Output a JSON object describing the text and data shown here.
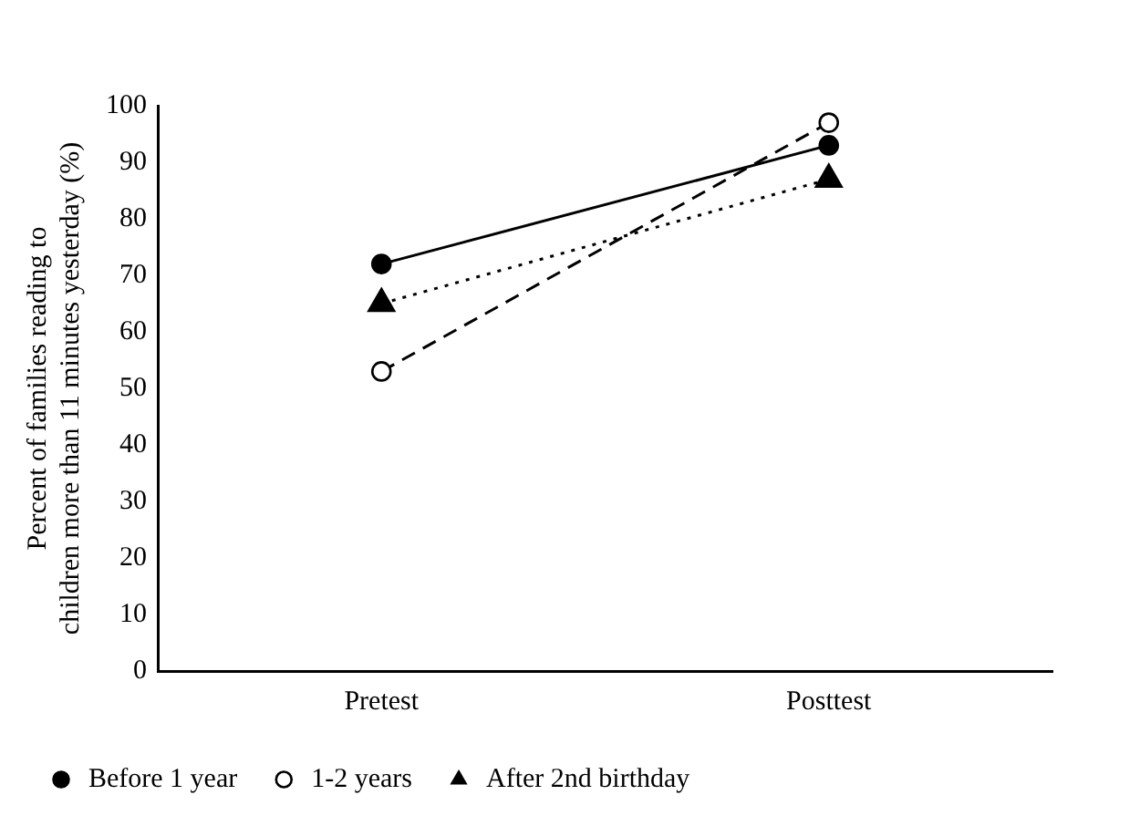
{
  "chart_data": {
    "type": "line",
    "ylabel": "Percent of families reading to\nchildren more than 11 minutes yesterday (%)",
    "categories": [
      "Pretest",
      "Posttest"
    ],
    "series": [
      {
        "name": "Before 1 year",
        "color": "#000000",
        "values": [
          72,
          93
        ],
        "marker": "circle",
        "line_style": "solid"
      },
      {
        "name": "1-2 years",
        "color": "#000000",
        "values": [
          53,
          97
        ],
        "marker": "circle",
        "line_style": "dashed"
      },
      {
        "name": "After 2nd birthday",
        "color": "#000000",
        "values": [
          65,
          87
        ],
        "marker": "triangle",
        "line_style": "dotted"
      }
    ],
    "ylim": [
      0,
      100
    ],
    "yticks": [
      0,
      10,
      20,
      30,
      40,
      50,
      60,
      70,
      80,
      90,
      100
    ],
    "grid": false,
    "legend": "bottom"
  }
}
